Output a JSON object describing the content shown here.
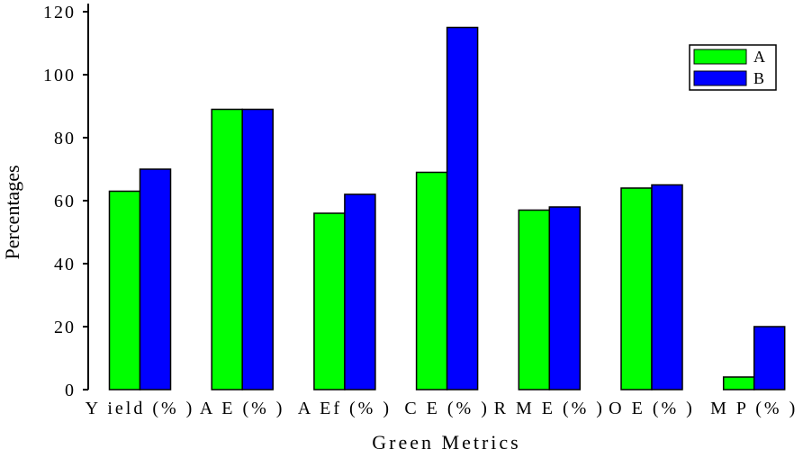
{
  "chart_data": {
    "type": "bar",
    "title": "",
    "xlabel": "Green Metrics",
    "ylabel": "Percentages",
    "categories": [
      "Yield (%)",
      "AE (%)",
      "AEf (%)",
      "CE (%)",
      "RME (%)",
      "OE (%)",
      "MP (%)"
    ],
    "category_labels": [
      "Y ield  (% )",
      "A E  (% )",
      "A Ef (% )",
      "C E  (% )",
      "R M E  (% )",
      "O E  (% )",
      "M P  (% )"
    ],
    "series": [
      {
        "name": "A",
        "color": "#00ff00",
        "values": [
          63,
          89,
          56,
          69,
          57,
          64,
          4
        ]
      },
      {
        "name": "B",
        "color": "#0000ff",
        "values": [
          70,
          89,
          62,
          115,
          58,
          65,
          20
        ]
      }
    ],
    "ylim": [
      0,
      120
    ],
    "yticks": [
      0,
      20,
      40,
      60,
      80,
      100,
      120
    ],
    "ytick_labels": [
      "0",
      "20",
      "40",
      "60",
      "80",
      "100",
      "120"
    ],
    "grid": false,
    "legend_position": "top-right"
  }
}
